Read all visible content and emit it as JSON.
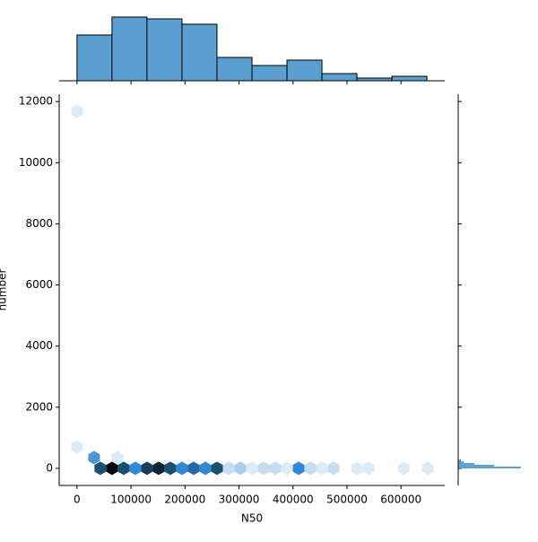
{
  "chart_data": [
    {
      "type": "hexbin",
      "x_label": "N50",
      "y_label": "number",
      "xlim": [
        -33000,
        681000
      ],
      "ylim": [
        -560,
        12240
      ],
      "xticks": [
        0,
        100000,
        200000,
        300000,
        400000,
        500000,
        600000
      ],
      "yticks": [
        0,
        2000,
        4000,
        6000,
        8000,
        10000,
        12000
      ],
      "x": [
        43200,
        64800,
        86400,
        108000,
        129600,
        151200,
        172800,
        194400,
        216000,
        237700,
        259300,
        280900,
        302500,
        324100,
        345700,
        367300,
        388900,
        410500,
        432100,
        453700,
        475300,
        518500,
        540100,
        605000,
        649800,
        31600,
        74800,
        0,
        0
      ],
      "values": [
        0,
        0,
        0,
        0,
        0,
        0,
        0,
        0,
        0,
        0,
        0,
        0,
        0,
        0,
        0,
        0,
        0,
        0,
        0,
        0,
        0,
        0,
        0,
        0,
        0,
        350,
        350,
        700,
        11680
      ],
      "colors": [
        "#1b4f72",
        "#050505",
        "#1b4f72",
        "#2e8ad8",
        "#163f5e",
        "#0c2536",
        "#1b4f72",
        "#2e8ad8",
        "#2469a3",
        "#2e8ad8",
        "#1b4f72",
        "#c6dcf0",
        "#a9cdec",
        "#ddebf7",
        "#c6dcf0",
        "#c6dcf0",
        "#ddebf7",
        "#2e8ad8",
        "#c6dcf0",
        "#ddebf7",
        "#c6dcf0",
        "#ddebf7",
        "#ddebf7",
        "#ddebf7",
        "#ddebf7",
        "#4a97d6",
        "#ddebf7",
        "#ddebf7",
        "#ddebf7"
      ]
    },
    {
      "type": "histogram",
      "orientation": "vertical",
      "color": "#5a9fd0",
      "bins": [
        0,
        64800,
        129600,
        194400,
        259200,
        324000,
        388800,
        453600,
        518400,
        583200,
        648000
      ],
      "values": [
        51,
        71,
        69,
        63,
        26,
        17,
        23,
        8,
        3,
        5
      ],
      "ylim": [
        0,
        75
      ]
    },
    {
      "type": "histogram",
      "orientation": "horizontal",
      "color": "#5a9fd0",
      "bins": [
        0,
        59,
        118,
        176,
        235,
        294
      ],
      "values": [
        70,
        40,
        18,
        6,
        3
      ],
      "xlim": [
        0,
        75
      ]
    }
  ]
}
